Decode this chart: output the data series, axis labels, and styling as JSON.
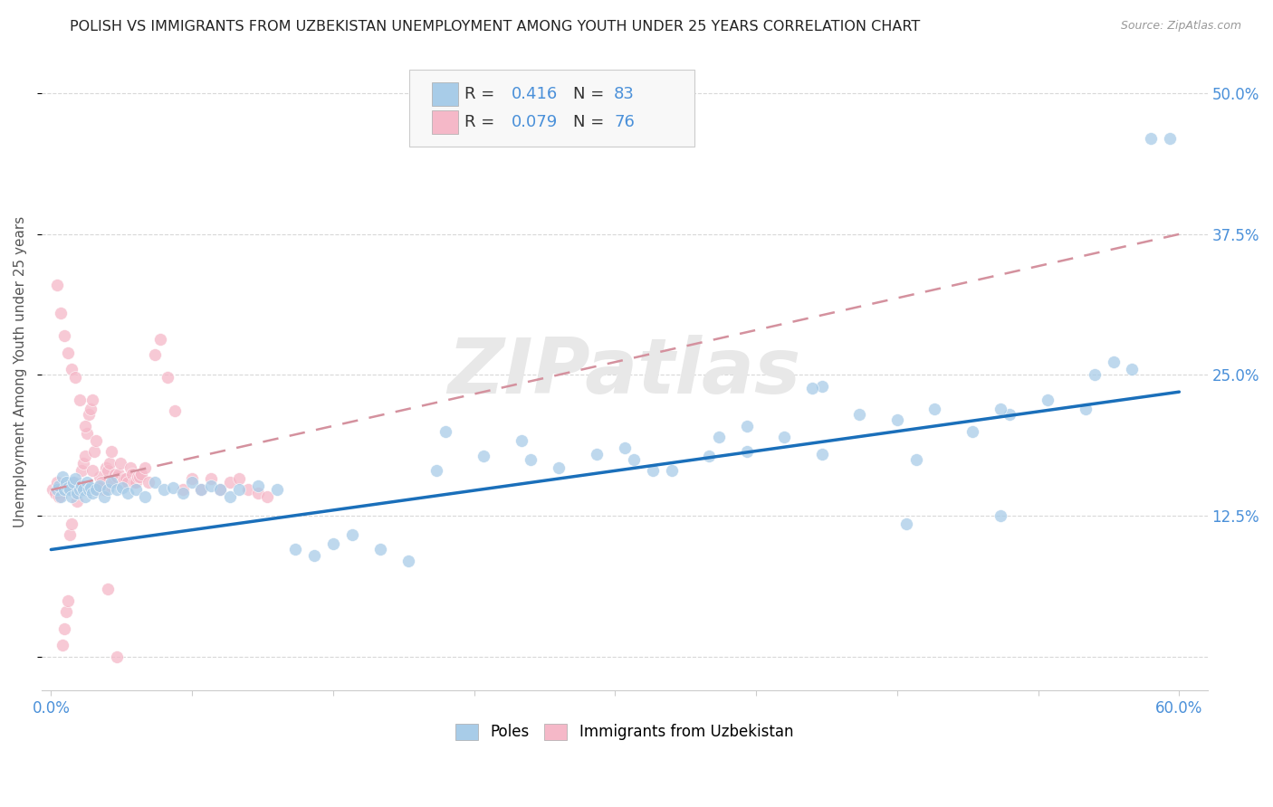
{
  "title": "POLISH VS IMMIGRANTS FROM UZBEKISTAN UNEMPLOYMENT AMONG YOUTH UNDER 25 YEARS CORRELATION CHART",
  "source": "Source: ZipAtlas.com",
  "ylabel": "Unemployment Among Youth under 25 years",
  "xlim": [
    -0.005,
    0.615
  ],
  "ylim": [
    -0.03,
    0.535
  ],
  "xticks": [
    0.0,
    0.075,
    0.15,
    0.225,
    0.3,
    0.375,
    0.45,
    0.525,
    0.6
  ],
  "xticklabels": [
    "0.0%",
    "",
    "",
    "",
    "",
    "",
    "",
    "",
    "60.0%"
  ],
  "ytick_vals": [
    0.0,
    0.125,
    0.25,
    0.375,
    0.5
  ],
  "yticklabels": [
    "",
    "12.5%",
    "25.0%",
    "37.5%",
    "50.0%"
  ],
  "blue_scatter_color": "#a8cce8",
  "pink_scatter_color": "#f5b8c8",
  "blue_line_color": "#1a6fba",
  "pink_line_color": "#d4919e",
  "blue_line_start_y": 0.095,
  "blue_line_end_y": 0.235,
  "pink_line_start_y": 0.148,
  "pink_line_end_y": 0.375,
  "R_blue": 0.416,
  "N_blue": 83,
  "R_pink": 0.079,
  "N_pink": 76,
  "watermark": "ZIPatlas",
  "legend_label_blue": "Poles",
  "legend_label_pink": "Immigrants from Uzbekistan",
  "title_fontsize": 11.5,
  "tick_fontsize": 12,
  "tick_color": "#4a90d9",
  "grid_color": "#d8d8d8",
  "background_color": "#ffffff",
  "blue_scatter_x": [
    0.003,
    0.004,
    0.005,
    0.006,
    0.007,
    0.008,
    0.009,
    0.01,
    0.011,
    0.012,
    0.013,
    0.014,
    0.015,
    0.016,
    0.017,
    0.018,
    0.019,
    0.02,
    0.021,
    0.022,
    0.024,
    0.026,
    0.028,
    0.03,
    0.032,
    0.035,
    0.038,
    0.041,
    0.045,
    0.05,
    0.055,
    0.06,
    0.065,
    0.07,
    0.075,
    0.08,
    0.085,
    0.09,
    0.095,
    0.1,
    0.11,
    0.12,
    0.13,
    0.14,
    0.15,
    0.16,
    0.175,
    0.19,
    0.21,
    0.23,
    0.25,
    0.27,
    0.29,
    0.31,
    0.33,
    0.35,
    0.37,
    0.39,
    0.41,
    0.43,
    0.45,
    0.47,
    0.49,
    0.51,
    0.53,
    0.55,
    0.565,
    0.575,
    0.585,
    0.595,
    0.205,
    0.255,
    0.305,
    0.355,
    0.405,
    0.455,
    0.505,
    0.555,
    0.505,
    0.46,
    0.41,
    0.37,
    0.32
  ],
  "blue_scatter_y": [
    0.148,
    0.152,
    0.142,
    0.16,
    0.148,
    0.155,
    0.15,
    0.148,
    0.142,
    0.155,
    0.158,
    0.145,
    0.148,
    0.152,
    0.148,
    0.142,
    0.155,
    0.148,
    0.15,
    0.145,
    0.148,
    0.152,
    0.142,
    0.148,
    0.155,
    0.148,
    0.15,
    0.145,
    0.148,
    0.142,
    0.155,
    0.148,
    0.15,
    0.145,
    0.155,
    0.148,
    0.152,
    0.148,
    0.142,
    0.148,
    0.152,
    0.148,
    0.095,
    0.09,
    0.1,
    0.108,
    0.095,
    0.085,
    0.2,
    0.178,
    0.192,
    0.168,
    0.18,
    0.175,
    0.165,
    0.178,
    0.182,
    0.195,
    0.24,
    0.215,
    0.21,
    0.22,
    0.2,
    0.215,
    0.228,
    0.22,
    0.262,
    0.255,
    0.46,
    0.46,
    0.165,
    0.175,
    0.185,
    0.195,
    0.238,
    0.118,
    0.125,
    0.25,
    0.22,
    0.175,
    0.18,
    0.205,
    0.165
  ],
  "pink_scatter_x": [
    0.001,
    0.002,
    0.003,
    0.004,
    0.005,
    0.006,
    0.007,
    0.008,
    0.009,
    0.01,
    0.011,
    0.012,
    0.013,
    0.014,
    0.015,
    0.016,
    0.017,
    0.018,
    0.019,
    0.02,
    0.021,
    0.022,
    0.023,
    0.024,
    0.025,
    0.026,
    0.027,
    0.028,
    0.029,
    0.03,
    0.031,
    0.032,
    0.033,
    0.034,
    0.035,
    0.036,
    0.037,
    0.038,
    0.039,
    0.04,
    0.041,
    0.042,
    0.043,
    0.044,
    0.045,
    0.046,
    0.047,
    0.048,
    0.05,
    0.052,
    0.055,
    0.058,
    0.062,
    0.066,
    0.07,
    0.075,
    0.08,
    0.085,
    0.09,
    0.095,
    0.1,
    0.105,
    0.11,
    0.115,
    0.003,
    0.005,
    0.007,
    0.009,
    0.011,
    0.013,
    0.015,
    0.018,
    0.022,
    0.026,
    0.03,
    0.035
  ],
  "pink_scatter_y": [
    0.148,
    0.145,
    0.155,
    0.142,
    0.148,
    0.01,
    0.025,
    0.04,
    0.05,
    0.108,
    0.118,
    0.148,
    0.155,
    0.138,
    0.152,
    0.165,
    0.172,
    0.178,
    0.198,
    0.215,
    0.22,
    0.228,
    0.182,
    0.192,
    0.148,
    0.16,
    0.155,
    0.148,
    0.168,
    0.165,
    0.172,
    0.182,
    0.155,
    0.162,
    0.16,
    0.162,
    0.172,
    0.155,
    0.158,
    0.158,
    0.155,
    0.168,
    0.162,
    0.155,
    0.155,
    0.16,
    0.16,
    0.162,
    0.168,
    0.155,
    0.268,
    0.282,
    0.248,
    0.218,
    0.148,
    0.158,
    0.148,
    0.158,
    0.148,
    0.155,
    0.158,
    0.148,
    0.145,
    0.142,
    0.33,
    0.305,
    0.285,
    0.27,
    0.255,
    0.248,
    0.228,
    0.205,
    0.165,
    0.15,
    0.06,
    0.0
  ]
}
